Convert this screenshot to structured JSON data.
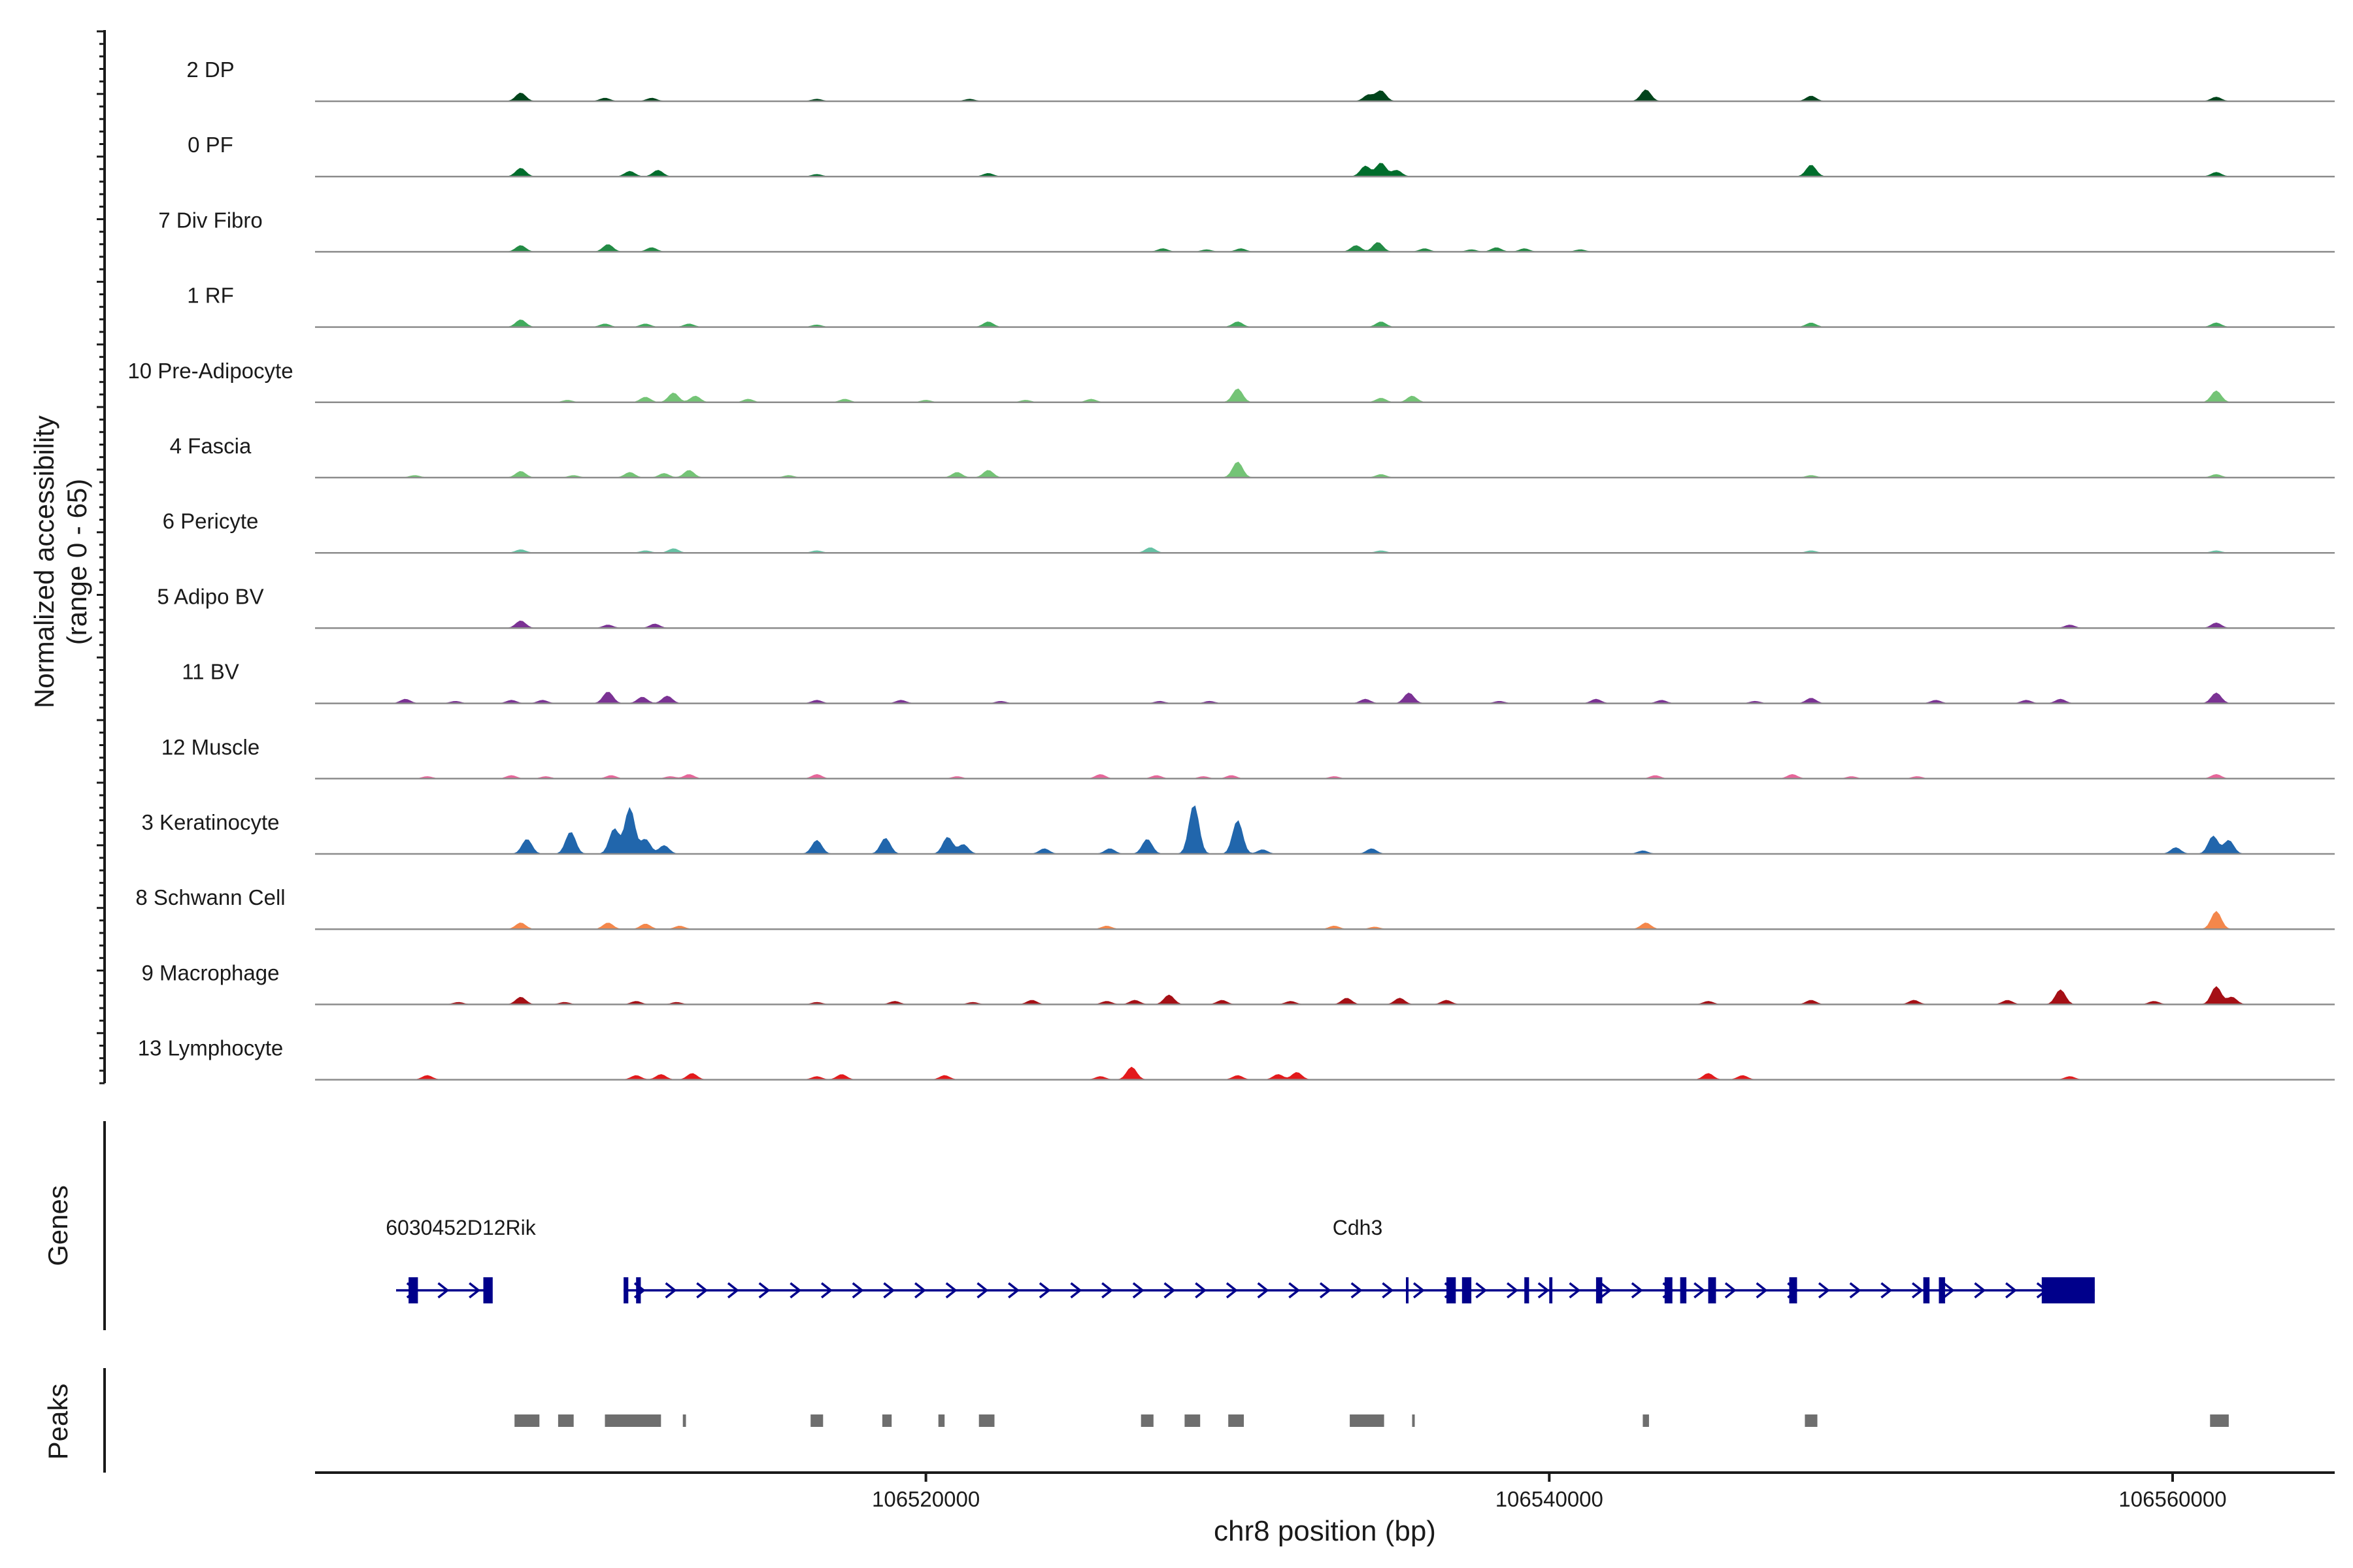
{
  "chart_data": {
    "type": "area",
    "ylabel": "Normalized accessibility",
    "ylabel_range": "(range 0 - 65)",
    "ylim": [
      0,
      65
    ],
    "xlabel": "chr8 position (bp)",
    "xlim": [
      106500400,
      106565200
    ],
    "xticks": [
      106520000,
      106540000,
      106560000
    ],
    "xtick_labels": [
      "106520000",
      "106540000",
      "106560000"
    ],
    "genes_label": "Genes",
    "peaks_label": "Peaks",
    "tracks": [
      {
        "name": "2 DP",
        "color": "#00441b",
        "peaks": [
          [
            106507000,
            8
          ],
          [
            106509700,
            3
          ],
          [
            106511200,
            3
          ],
          [
            106516500,
            2
          ],
          [
            106521400,
            2
          ],
          [
            106534200,
            6
          ],
          [
            106534600,
            10
          ],
          [
            106543100,
            11
          ],
          [
            106548400,
            5
          ],
          [
            106561400,
            4
          ]
        ]
      },
      {
        "name": "0 PF",
        "color": "#006d2c",
        "peaks": [
          [
            106507000,
            8
          ],
          [
            106510500,
            5
          ],
          [
            106511400,
            6
          ],
          [
            106516500,
            2
          ],
          [
            106522000,
            3
          ],
          [
            106534100,
            10
          ],
          [
            106534600,
            13
          ],
          [
            106535100,
            6
          ],
          [
            106548400,
            11
          ],
          [
            106561400,
            4
          ]
        ]
      },
      {
        "name": "7 Div Fibro",
        "color": "#238b45",
        "peaks": [
          [
            106507000,
            6
          ],
          [
            106509800,
            7
          ],
          [
            106511200,
            4
          ],
          [
            106527600,
            3
          ],
          [
            106529000,
            2
          ],
          [
            106530100,
            3
          ],
          [
            106533800,
            6
          ],
          [
            106534500,
            9
          ],
          [
            106536000,
            3
          ],
          [
            106537500,
            2
          ],
          [
            106538300,
            4
          ],
          [
            106539200,
            3
          ],
          [
            106541000,
            2
          ]
        ]
      },
      {
        "name": "1 RF",
        "color": "#41ab5d",
        "peaks": [
          [
            106507000,
            7
          ],
          [
            106509700,
            3
          ],
          [
            106511000,
            3
          ],
          [
            106512400,
            3
          ],
          [
            106516500,
            2
          ],
          [
            106522000,
            5
          ],
          [
            106530000,
            5
          ],
          [
            106534600,
            5
          ],
          [
            106548400,
            4
          ],
          [
            106561400,
            4
          ]
        ]
      },
      {
        "name": "10 Pre-Adipocyte",
        "color": "#74c476",
        "peaks": [
          [
            106508500,
            2
          ],
          [
            106511000,
            5
          ],
          [
            106511900,
            9
          ],
          [
            106512600,
            6
          ],
          [
            106514300,
            3
          ],
          [
            106517400,
            3
          ],
          [
            106520000,
            2
          ],
          [
            106523200,
            2
          ],
          [
            106525300,
            3
          ],
          [
            106530000,
            13
          ],
          [
            106534600,
            4
          ],
          [
            106535600,
            6
          ],
          [
            106561400,
            11
          ]
        ]
      },
      {
        "name": "4 Fascia",
        "color": "#74c476",
        "peaks": [
          [
            106503600,
            2
          ],
          [
            106507000,
            6
          ],
          [
            106508700,
            2
          ],
          [
            106510500,
            5
          ],
          [
            106511600,
            4
          ],
          [
            106512400,
            7
          ],
          [
            106515600,
            2
          ],
          [
            106521000,
            5
          ],
          [
            106522000,
            7
          ],
          [
            106530000,
            15
          ],
          [
            106534600,
            3
          ],
          [
            106548400,
            2
          ],
          [
            106561400,
            3
          ]
        ]
      },
      {
        "name": "6 Pericyte",
        "color": "#66c2a4",
        "peaks": [
          [
            106507000,
            3
          ],
          [
            106511000,
            2
          ],
          [
            106511900,
            4
          ],
          [
            106516500,
            2
          ],
          [
            106527200,
            5
          ],
          [
            106534600,
            2
          ],
          [
            106548400,
            2
          ],
          [
            106561400,
            2
          ]
        ]
      },
      {
        "name": "5 Adipo BV",
        "color": "#7b3294",
        "peaks": [
          [
            106507000,
            7
          ],
          [
            106509800,
            3
          ],
          [
            106511300,
            4
          ],
          [
            106556700,
            3
          ],
          [
            106561400,
            5
          ]
        ]
      },
      {
        "name": "11 BV",
        "color": "#7b3294",
        "peaks": [
          [
            106503300,
            4
          ],
          [
            106504900,
            2
          ],
          [
            106506700,
            3
          ],
          [
            106507700,
            3
          ],
          [
            106509800,
            11
          ],
          [
            106510900,
            6
          ],
          [
            106511700,
            7
          ],
          [
            106516500,
            3
          ],
          [
            106519200,
            3
          ],
          [
            106522400,
            2
          ],
          [
            106527500,
            2
          ],
          [
            106529100,
            2
          ],
          [
            106534100,
            4
          ],
          [
            106535500,
            10
          ],
          [
            106538400,
            2
          ],
          [
            106541500,
            4
          ],
          [
            106543600,
            3
          ],
          [
            106546600,
            2
          ],
          [
            106548400,
            5
          ],
          [
            106552400,
            3
          ],
          [
            106555300,
            3
          ],
          [
            106556400,
            4
          ],
          [
            106561400,
            10
          ]
        ]
      },
      {
        "name": "12 Muscle",
        "color": "#e7669a",
        "peaks": [
          [
            106504000,
            2
          ],
          [
            106506700,
            3
          ],
          [
            106507800,
            2
          ],
          [
            106509900,
            3
          ],
          [
            106511800,
            2
          ],
          [
            106512400,
            4
          ],
          [
            106516500,
            4
          ],
          [
            106521000,
            2
          ],
          [
            106525600,
            4
          ],
          [
            106527400,
            3
          ],
          [
            106528900,
            2
          ],
          [
            106529800,
            3
          ],
          [
            106533100,
            2
          ],
          [
            106543400,
            3
          ],
          [
            106547800,
            4
          ],
          [
            106549700,
            2
          ],
          [
            106551800,
            2
          ],
          [
            106561400,
            4
          ]
        ]
      },
      {
        "name": "3 Keratinocyte",
        "color": "#2166ac",
        "peaks": [
          [
            106507200,
            14
          ],
          [
            106508600,
            21
          ],
          [
            106510000,
            24
          ],
          [
            106510500,
            44
          ],
          [
            106511000,
            14
          ],
          [
            106511600,
            8
          ],
          [
            106516500,
            13
          ],
          [
            106518700,
            15
          ],
          [
            106520700,
            16
          ],
          [
            106521200,
            9
          ],
          [
            106523800,
            5
          ],
          [
            106525900,
            5
          ],
          [
            106527100,
            14
          ],
          [
            106528600,
            47
          ],
          [
            106530000,
            32
          ],
          [
            106530800,
            4
          ],
          [
            106534300,
            5
          ],
          [
            106543000,
            3
          ],
          [
            106560100,
            6
          ],
          [
            106561300,
            17
          ],
          [
            106561800,
            13
          ]
        ]
      },
      {
        "name": "8 Schwann Cell",
        "color": "#f4874b",
        "peaks": [
          [
            106507000,
            6
          ],
          [
            106509800,
            6
          ],
          [
            106511000,
            5
          ],
          [
            106512100,
            3
          ],
          [
            106525800,
            3
          ],
          [
            106533100,
            3
          ],
          [
            106534400,
            2
          ],
          [
            106543100,
            6
          ],
          [
            106561400,
            17
          ]
        ]
      },
      {
        "name": "9 Macrophage",
        "color": "#a50f15",
        "peaks": [
          [
            106505000,
            2
          ],
          [
            106507000,
            7
          ],
          [
            106508400,
            2
          ],
          [
            106510700,
            3
          ],
          [
            106512000,
            2
          ],
          [
            106516500,
            2
          ],
          [
            106519000,
            3
          ],
          [
            106521500,
            2
          ],
          [
            106523400,
            4
          ],
          [
            106525800,
            3
          ],
          [
            106526700,
            4
          ],
          [
            106527800,
            9
          ],
          [
            106529500,
            4
          ],
          [
            106531700,
            3
          ],
          [
            106533500,
            6
          ],
          [
            106535200,
            6
          ],
          [
            106536700,
            4
          ],
          [
            106545100,
            3
          ],
          [
            106548400,
            4
          ],
          [
            106551700,
            4
          ],
          [
            106554700,
            4
          ],
          [
            106556400,
            14
          ],
          [
            106559400,
            3
          ],
          [
            106561400,
            17
          ],
          [
            106561900,
            7
          ]
        ]
      },
      {
        "name": "13 Lymphocyte",
        "color": "#e31a1c",
        "peaks": [
          [
            106504000,
            4
          ],
          [
            106510700,
            4
          ],
          [
            106511500,
            5
          ],
          [
            106512500,
            6
          ],
          [
            106516500,
            3
          ],
          [
            106517300,
            5
          ],
          [
            106520600,
            4
          ],
          [
            106525600,
            3
          ],
          [
            106526600,
            12
          ],
          [
            106530000,
            4
          ],
          [
            106531300,
            5
          ],
          [
            106531900,
            7
          ],
          [
            106545100,
            6
          ],
          [
            106546200,
            4
          ],
          [
            106556700,
            3
          ]
        ]
      }
    ],
    "genes": [
      {
        "name": "6030452D12Rik",
        "start": 106503000,
        "end": 106506000,
        "exons": [
          [
            106503400,
            106503700
          ],
          [
            106505800,
            106506100
          ]
        ]
      },
      {
        "name": "Cdh3",
        "start": 106510300,
        "end": 106557500,
        "exons": [
          [
            106510300,
            106510450
          ],
          [
            106510700,
            106510850
          ],
          [
            106535400,
            106535450
          ],
          [
            106536700,
            106537000
          ],
          [
            106537200,
            106537500
          ],
          [
            106539200,
            106539350
          ],
          [
            106540000,
            106540100
          ],
          [
            106541500,
            106541700
          ],
          [
            106543700,
            106543950
          ],
          [
            106544200,
            106544400
          ],
          [
            106545100,
            106545350
          ],
          [
            106547700,
            106547950
          ],
          [
            106552000,
            106552200
          ],
          [
            106552500,
            106552700
          ],
          [
            106555800,
            106557500
          ]
        ]
      }
    ],
    "peak_regions": [
      [
        106506800,
        106507600
      ],
      [
        106508200,
        106508700
      ],
      [
        106509700,
        106511500
      ],
      [
        106512200,
        106512300
      ],
      [
        106516300,
        106516700
      ],
      [
        106518600,
        106518900
      ],
      [
        106520400,
        106520600
      ],
      [
        106521700,
        106522200
      ],
      [
        106526900,
        106527300
      ],
      [
        106528300,
        106528800
      ],
      [
        106529700,
        106530200
      ],
      [
        106533600,
        106534700
      ],
      [
        106535600,
        106535650
      ],
      [
        106543000,
        106543200
      ],
      [
        106548200,
        106548600
      ],
      [
        106561200,
        106561800
      ]
    ]
  }
}
